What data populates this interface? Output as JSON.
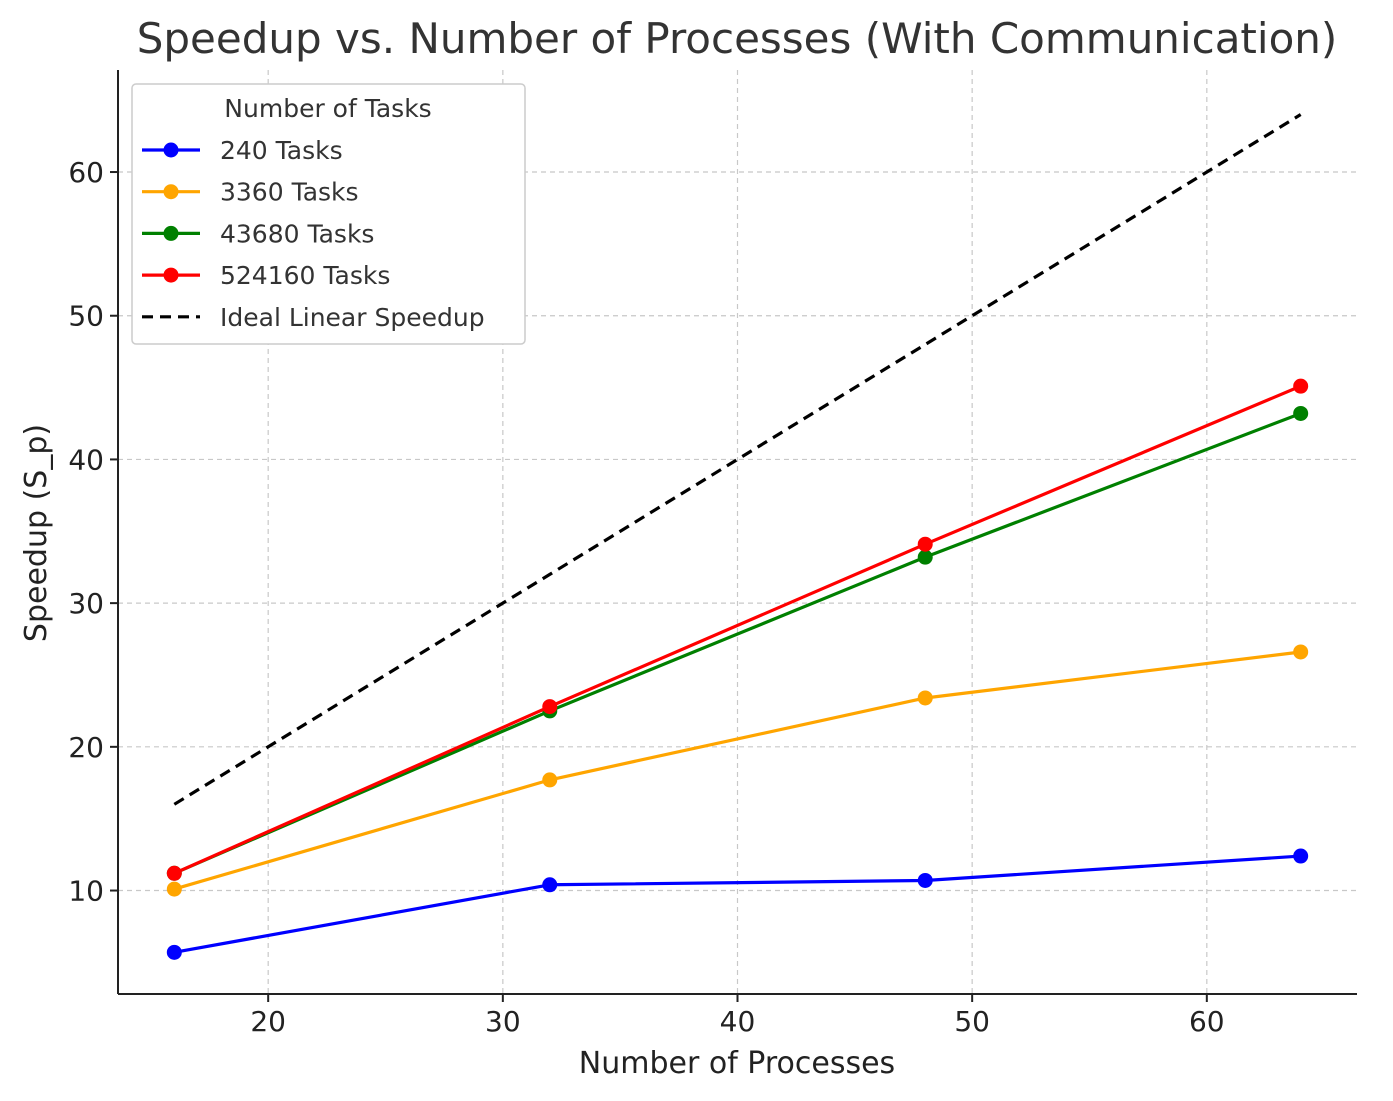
{
  "chart_data": {
    "type": "line",
    "title": "Speedup vs. Number of Processes (With Communication)",
    "xlabel": "Number of Processes",
    "ylabel": "Speedup (S_p)",
    "xlim": [
      13.6,
      66.4
    ],
    "ylim": [
      2.8,
      67.1
    ],
    "xticks": [
      20,
      30,
      40,
      50,
      60
    ],
    "yticks": [
      10,
      20,
      30,
      40,
      50,
      60
    ],
    "grid": true,
    "legend": {
      "title": "Number of Tasks",
      "position": "top-left"
    },
    "x": [
      16,
      32,
      48,
      64
    ],
    "series": [
      {
        "name": "240 Tasks",
        "color": "#0000ff",
        "marker": "circle",
        "dash": "solid",
        "values": [
          5.7,
          10.4,
          10.7,
          12.4
        ]
      },
      {
        "name": "3360 Tasks",
        "color": "#ffa500",
        "marker": "circle",
        "dash": "solid",
        "values": [
          10.1,
          17.7,
          23.4,
          26.6
        ]
      },
      {
        "name": "43680 Tasks",
        "color": "#008000",
        "marker": "circle",
        "dash": "solid",
        "values": [
          11.2,
          22.5,
          33.2,
          43.2
        ]
      },
      {
        "name": "524160 Tasks",
        "color": "#ff0000",
        "marker": "circle",
        "dash": "solid",
        "values": [
          11.2,
          22.8,
          34.1,
          45.1
        ]
      },
      {
        "name": "Ideal Linear Speedup",
        "color": "#000000",
        "marker": "none",
        "dash": "dashed",
        "values": [
          16,
          32,
          48,
          64
        ]
      }
    ]
  }
}
